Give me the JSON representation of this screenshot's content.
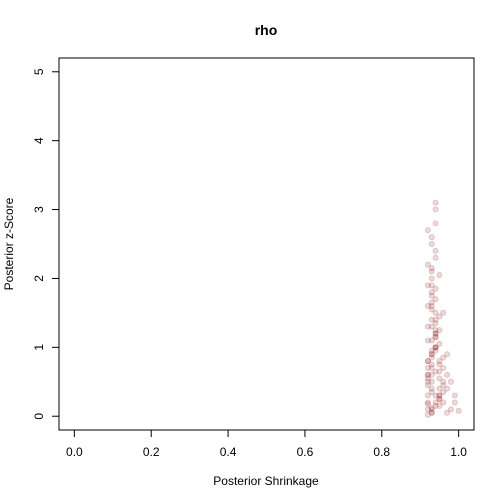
{
  "chart_data": {
    "type": "scatter",
    "title": "rho",
    "xlabel": "Posterior Shrinkage",
    "ylabel": "Posterior z-Score",
    "xlim": [
      -0.04,
      1.04
    ],
    "ylim": [
      -0.2,
      5.2
    ],
    "xticks": [
      {
        "value": 0,
        "label": "0.0"
      },
      0.2,
      0.4,
      0.6,
      0.8,
      {
        "value": 1,
        "label": "1.0"
      }
    ],
    "yticks": [
      0,
      1,
      2,
      3,
      4,
      5
    ],
    "color": "#8b1a1a",
    "x": [
      0.93,
      0.92,
      0.94,
      0.95,
      0.93,
      0.96,
      0.92,
      0.94,
      0.97,
      0.93,
      0.92,
      0.95,
      0.93,
      0.94,
      0.98,
      0.92,
      0.93,
      0.96,
      0.94,
      0.95,
      0.93,
      0.92,
      0.94,
      0.99,
      0.93,
      0.95,
      0.92,
      0.94,
      0.96,
      0.93,
      0.92,
      0.93,
      0.95,
      0.94,
      0.97,
      0.92,
      0.93,
      0.94,
      1.0,
      0.93,
      0.92,
      0.94,
      0.95,
      0.93,
      0.96,
      0.92,
      0.94,
      0.93,
      0.98,
      0.95,
      0.93,
      0.92,
      0.94,
      0.95,
      0.93,
      0.97,
      0.92,
      0.94,
      0.93,
      0.96,
      0.92,
      0.93,
      0.94,
      0.95,
      0.93,
      0.92,
      0.99,
      0.94,
      0.93,
      0.95,
      0.93,
      0.92,
      0.94,
      0.93,
      0.95,
      0.96,
      0.92,
      0.94,
      0.93,
      0.97,
      0.92,
      0.93,
      0.94,
      0.93,
      0.95,
      0.92,
      0.94,
      0.93,
      0.96,
      0.94,
      0.93,
      0.94,
      0.92,
      0.95,
      0.93,
      0.94,
      0.93,
      0.95,
      0.94,
      0.94
    ],
    "values": [
      0.05,
      0.1,
      0.2,
      0.3,
      0.4,
      0.5,
      0.6,
      0.15,
      0.05,
      0.7,
      0.8,
      0.25,
      0.9,
      1.0,
      0.1,
      1.1,
      0.35,
      0.45,
      1.2,
      0.55,
      1.3,
      0.02,
      0.65,
      0.2,
      1.4,
      0.75,
      0.3,
      1.5,
      0.85,
      0.12,
      1.6,
      0.95,
      1.05,
      1.7,
      0.4,
      0.5,
      1.8,
      1.15,
      0.08,
      0.6,
      1.9,
      1.25,
      0.3,
      2.0,
      0.7,
      0.2,
      1.35,
      2.1,
      0.5,
      1.45,
      0.9,
      2.2,
      1.0,
      0.15,
      1.55,
      0.6,
      0.45,
      2.3,
      1.65,
      0.35,
      0.8,
      1.1,
      2.4,
      0.25,
      1.75,
      0.55,
      0.3,
      1.2,
      2.5,
      0.65,
      0.05,
      1.3,
      0.95,
      2.6,
      0.4,
      1.5,
      0.18,
      1.85,
      0.85,
      0.9,
      2.7,
      0.1,
      1.4,
      0.75,
      2.05,
      0.6,
      2.8,
      1.6,
      0.2,
      1.0,
      0.5,
      3.1,
      0.7,
      1.25,
      2.15,
      0.3,
      1.9,
      0.8,
      1.15,
      3.0
    ]
  }
}
